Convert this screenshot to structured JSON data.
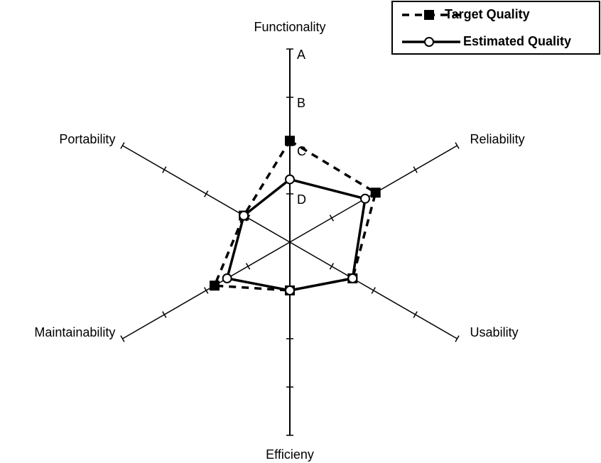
{
  "chart_data": {
    "type": "radar",
    "categories": [
      "Functionality",
      "Reliability",
      "Usability",
      "Efficieny",
      "Maintainability",
      "Portability"
    ],
    "rlim": [
      0,
      4
    ],
    "rticks": [
      {
        "value": 4,
        "label": "A"
      },
      {
        "value": 3,
        "label": "B"
      },
      {
        "value": 2,
        "label": "C"
      },
      {
        "value": 1,
        "label": "D"
      }
    ],
    "legend": "upper right",
    "series": [
      {
        "name": "Target Quality",
        "color": "#000000",
        "line": "dashed",
        "marker": "square",
        "values": [
          2.1,
          2.05,
          1.5,
          1,
          1.8,
          1.1
        ]
      },
      {
        "name": "Estimated Quality",
        "color": "#000000",
        "line": "solid",
        "marker": "circle",
        "values": [
          1.3,
          1.8,
          1.5,
          1,
          1.5,
          1.1
        ]
      }
    ]
  }
}
